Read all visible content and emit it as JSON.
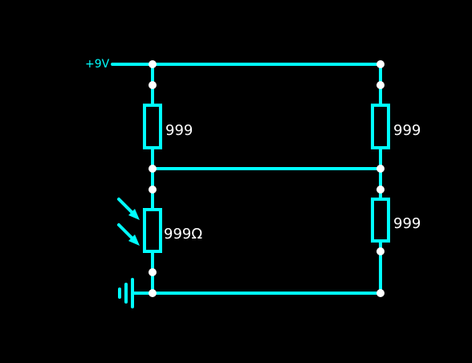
{
  "diagram": {
    "supply_label": "+9V",
    "resistor_top_left": {
      "value_label": "999"
    },
    "resistor_top_right": {
      "value_label": "999"
    },
    "resistor_bottom_right": {
      "value_label": "999"
    },
    "ldr": {
      "value_label": "999Ω"
    }
  },
  "colors": {
    "background": "#000000",
    "wire": "#00ffff",
    "node": "#ffffff",
    "label_text": "#ffffff",
    "supply_text": "#00ffff"
  },
  "icons": {
    "ldr_light": "incoming-light-arrows-icon",
    "ground": "ground-icon"
  }
}
